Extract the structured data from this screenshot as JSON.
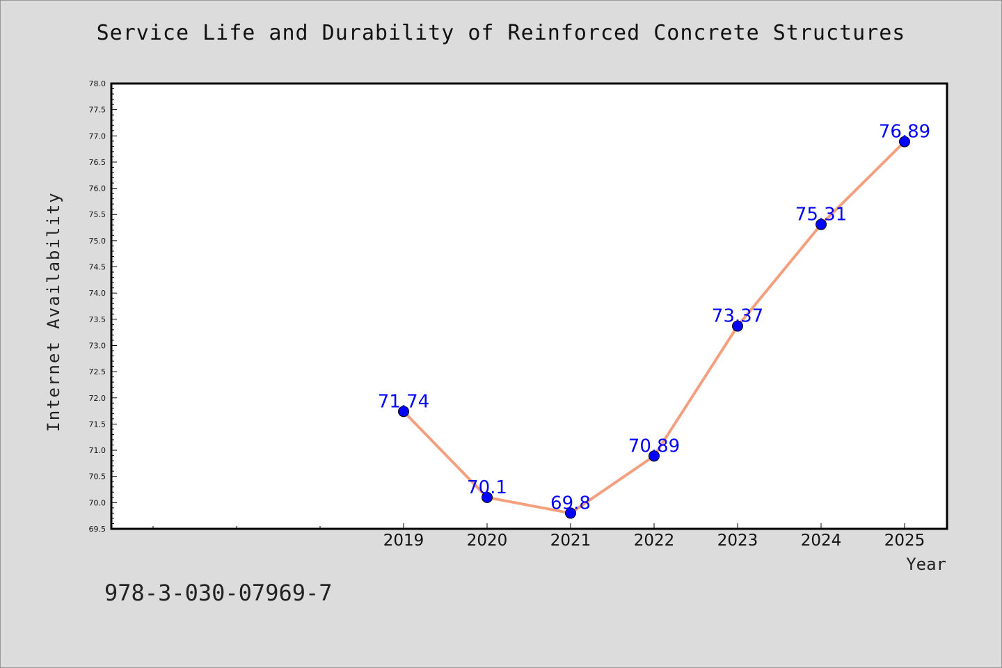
{
  "chart_data": {
    "type": "line",
    "title": "Service Life and Durability of Reinforced Concrete Structures",
    "xlabel": "Year",
    "ylabel": "Internet Availability",
    "categories": [
      "2019",
      "2020",
      "2021",
      "2022",
      "2023",
      "2024",
      "2025"
    ],
    "series": [
      {
        "values": [
          71.74,
          70.1,
          69.8,
          70.89,
          73.37,
          75.31,
          76.89
        ]
      }
    ],
    "data_labels": [
      "71.74",
      "70.1",
      "69.8",
      "70.89",
      "73.37",
      "75.31",
      "76.89"
    ],
    "ylim": [
      69.5,
      78.0
    ],
    "y_ticks": [
      "69.5",
      "70.0",
      "70.5",
      "71.0",
      "71.5",
      "72.0",
      "72.5",
      "73.0",
      "73.5",
      "74.0",
      "74.5",
      "75.0",
      "75.5",
      "76.0",
      "76.5",
      "77.0",
      "77.5",
      "78.0"
    ],
    "line_color": "#f4a07f",
    "marker_color": "#0000ff",
    "label_color": "#0000ff",
    "grid": false,
    "legend": "none"
  },
  "footer": {
    "isbn": "978-3-030-07969-7"
  }
}
